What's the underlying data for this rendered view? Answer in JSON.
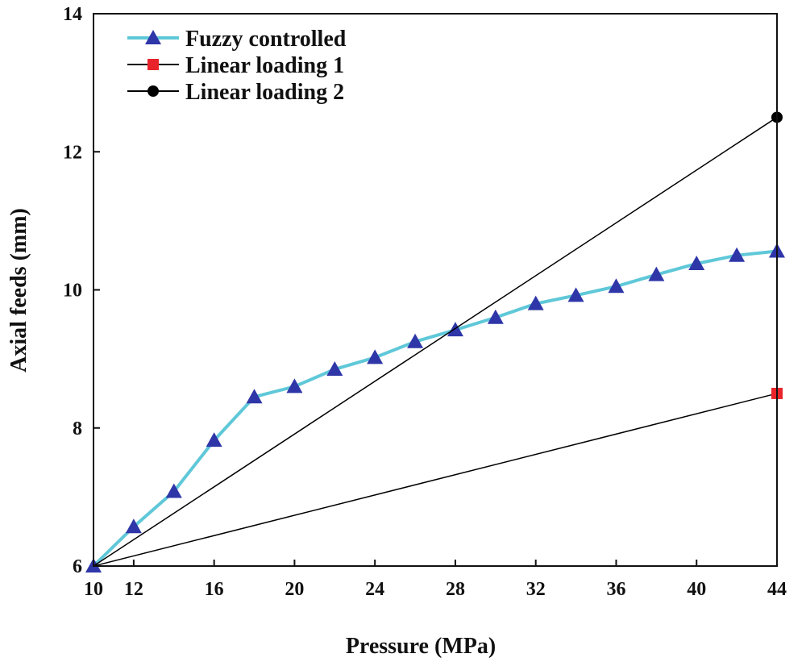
{
  "chart_data": {
    "type": "line",
    "xlabel": "Pressure (MPa)",
    "ylabel": "Axial feeds (mm)",
    "xlim": [
      10,
      44
    ],
    "ylim": [
      6,
      14
    ],
    "xticks": [
      10,
      12,
      16,
      20,
      24,
      28,
      32,
      36,
      40,
      44
    ],
    "yticks": [
      6,
      8,
      10,
      12,
      14
    ],
    "legend_position": "top-left",
    "series": [
      {
        "name": "Fuzzy controlled",
        "marker": "triangle",
        "color": "#2e36a8",
        "line_color": "#5fc8d8",
        "x": [
          10,
          12,
          14,
          16,
          18,
          20,
          22,
          24,
          26,
          28,
          30,
          32,
          34,
          36,
          38,
          40,
          42,
          44
        ],
        "y": [
          6.0,
          6.57,
          7.08,
          7.82,
          8.45,
          8.6,
          8.85,
          9.02,
          9.25,
          9.42,
          9.6,
          9.8,
          9.92,
          10.05,
          10.22,
          10.38,
          10.5,
          10.56
        ]
      },
      {
        "name": "Linear loading 1",
        "marker": "square",
        "color": "#e8242a",
        "line_color": "#000000",
        "x": [
          10,
          44
        ],
        "y": [
          6.0,
          8.5
        ]
      },
      {
        "name": "Linear loading 2",
        "marker": "circle",
        "color": "#000000",
        "line_color": "#000000",
        "x": [
          10,
          44
        ],
        "y": [
          6.0,
          12.5
        ]
      }
    ]
  }
}
